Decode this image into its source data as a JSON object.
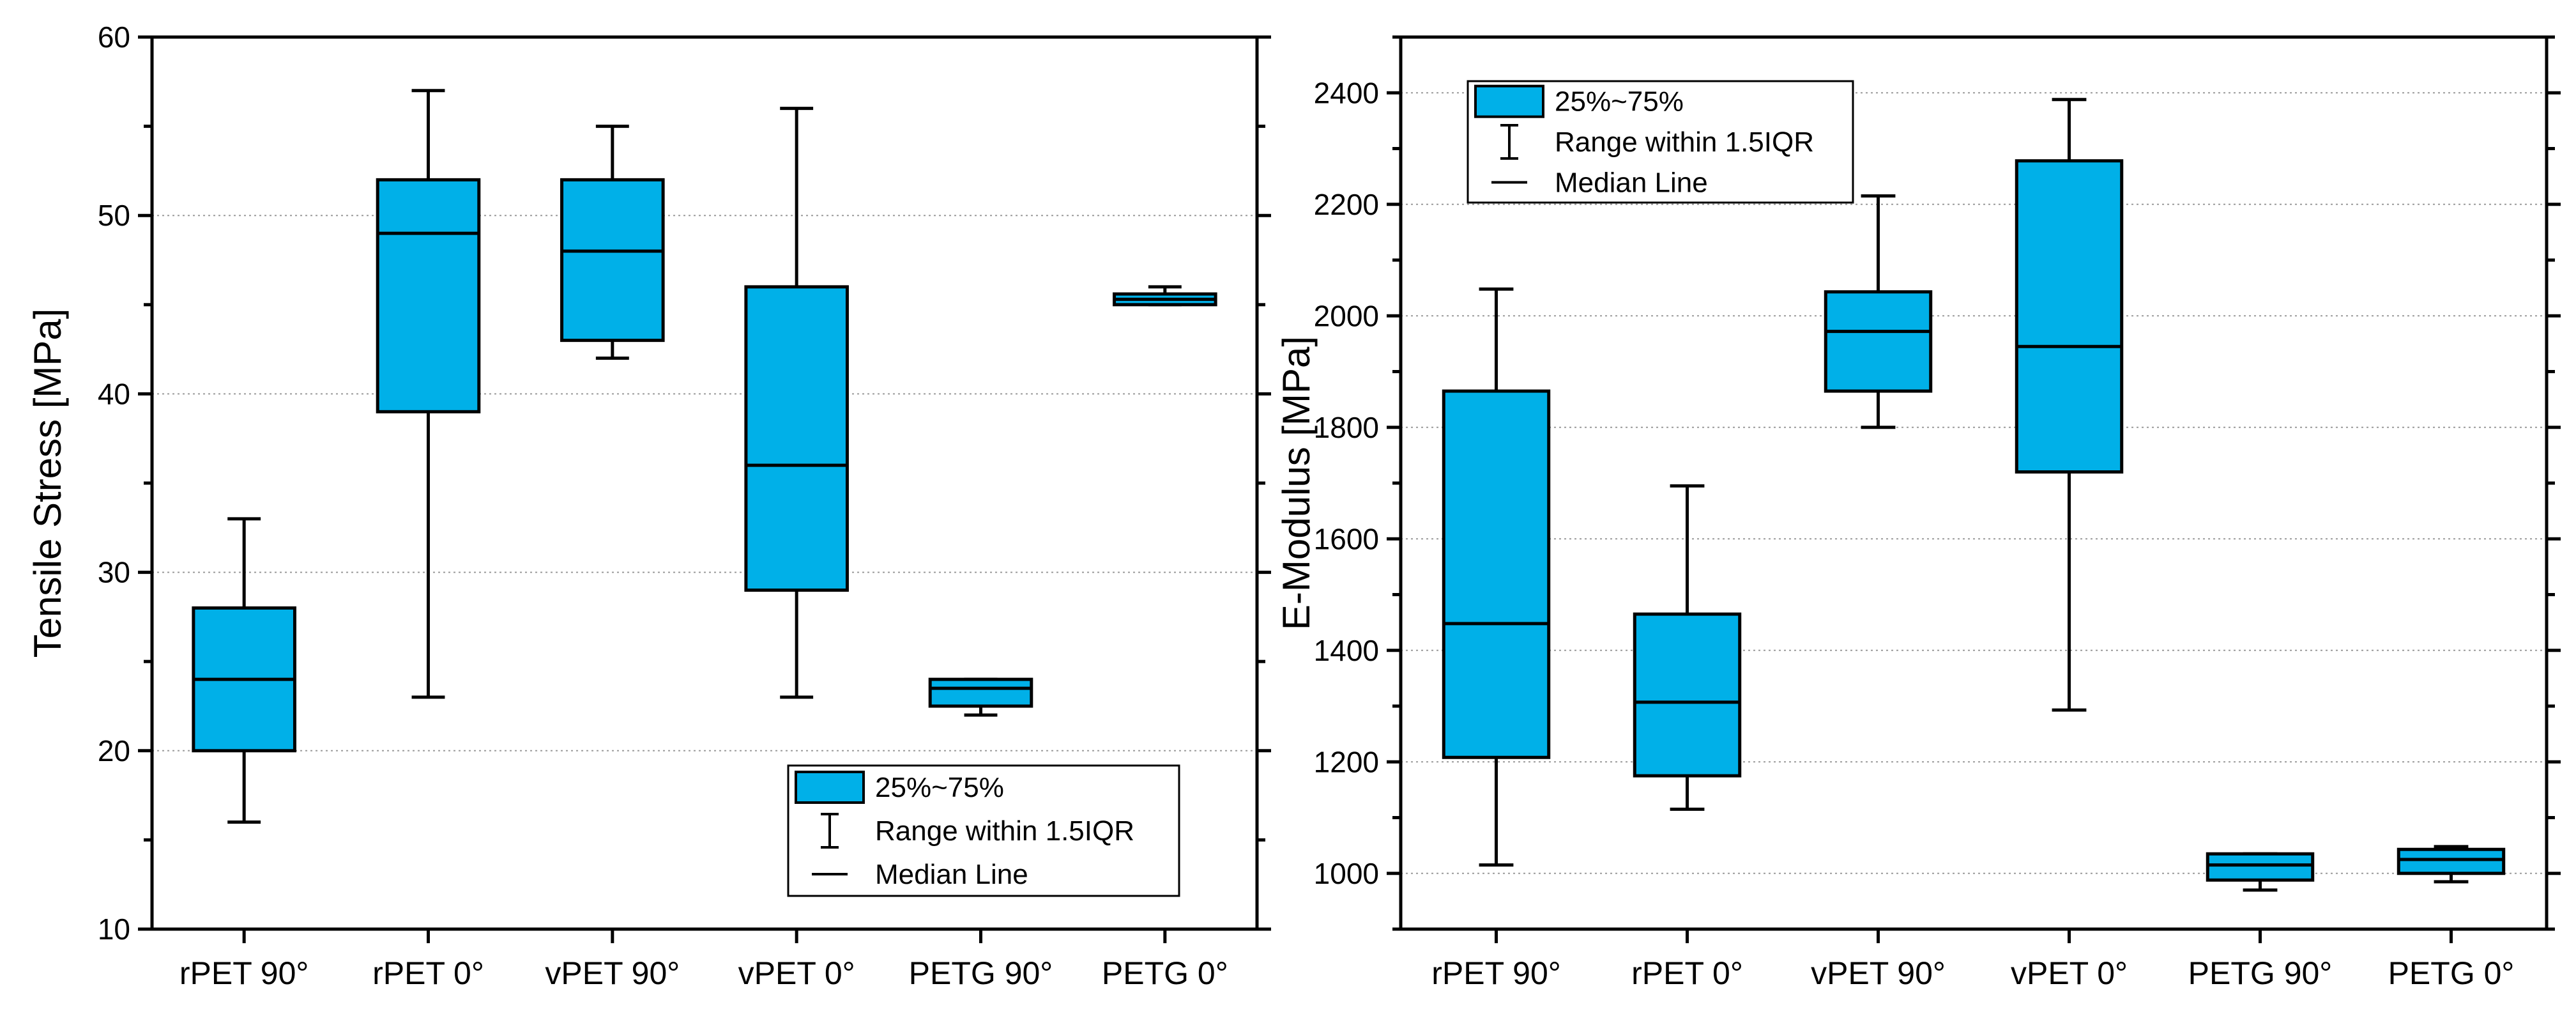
{
  "colors": {
    "box_fill": "#00B0E8",
    "stroke": "#000000",
    "grid": "#9a9a9a",
    "background": "#ffffff"
  },
  "legend": {
    "box_label": "25%~75%",
    "whisker_label": "Range within 1.5IQR",
    "median_label": "Median Line"
  },
  "chart_data": [
    {
      "type": "box",
      "title": "",
      "xlabel": "",
      "ylabel": "Tensile Stress [MPa]",
      "ylim": [
        10,
        60
      ],
      "yticks": [
        10,
        20,
        30,
        40,
        50,
        60
      ],
      "minor_step": 5,
      "grid": true,
      "legend_position": "bottom-right",
      "categories": [
        "rPET 90°",
        "rPET 0°",
        "vPET 90°",
        "vPET 0°",
        "PETG 90°",
        "PETG 0°"
      ],
      "boxes": [
        {
          "whisker_low": 16,
          "q1": 20,
          "median": 24,
          "q3": 28,
          "whisker_high": 33
        },
        {
          "whisker_low": 23,
          "q1": 39,
          "median": 49,
          "q3": 52,
          "whisker_high": 57
        },
        {
          "whisker_low": 42,
          "q1": 43,
          "median": 48,
          "q3": 52,
          "whisker_high": 55
        },
        {
          "whisker_low": 23,
          "q1": 29,
          "median": 36,
          "q3": 46,
          "whisker_high": 56
        },
        {
          "whisker_low": 22,
          "q1": 22.5,
          "median": 23.5,
          "q3": 24,
          "whisker_high": 24
        },
        {
          "whisker_low": 45,
          "q1": 45,
          "median": 45.3,
          "q3": 45.6,
          "whisker_high": 46
        }
      ]
    },
    {
      "type": "box",
      "title": "",
      "xlabel": "",
      "ylabel": "E-Modulus [MPa]",
      "ylim": [
        900,
        2500
      ],
      "yticks": [
        1000,
        1200,
        1400,
        1600,
        1800,
        2000,
        2200,
        2400
      ],
      "minor_step": 100,
      "grid": true,
      "legend_position": "top-left",
      "categories": [
        "rPET 90°",
        "rPET 0°",
        "vPET 90°",
        "vPET 0°",
        "PETG 90°",
        "PETG 0°"
      ],
      "boxes": [
        {
          "whisker_low": 1015,
          "q1": 1208,
          "median": 1448,
          "q3": 1865,
          "whisker_high": 2048
        },
        {
          "whisker_low": 1115,
          "q1": 1175,
          "median": 1307,
          "q3": 1465,
          "whisker_high": 1695
        },
        {
          "whisker_low": 1800,
          "q1": 1865,
          "median": 1972,
          "q3": 2043,
          "whisker_high": 2215
        },
        {
          "whisker_low": 1293,
          "q1": 1720,
          "median": 1945,
          "q3": 2278,
          "whisker_high": 2388
        },
        {
          "whisker_low": 970,
          "q1": 988,
          "median": 1015,
          "q3": 1035,
          "whisker_high": 1035
        },
        {
          "whisker_low": 985,
          "q1": 1000,
          "median": 1025,
          "q3": 1043,
          "whisker_high": 1048
        }
      ]
    }
  ]
}
